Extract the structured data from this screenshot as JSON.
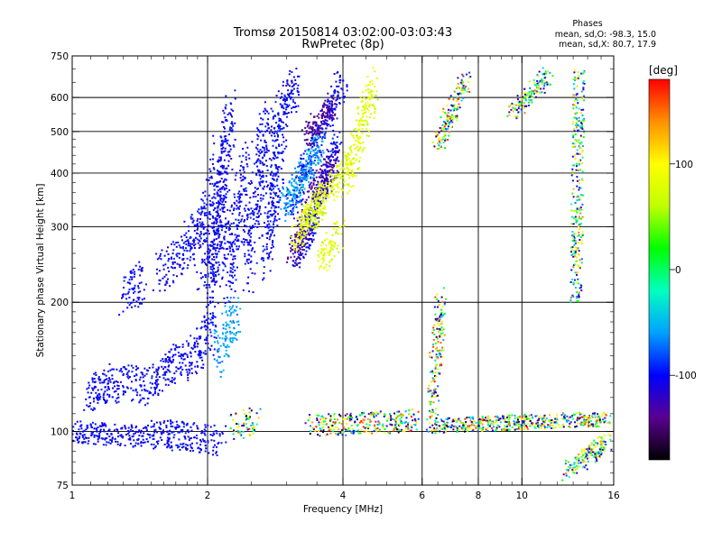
{
  "chart_data": {
    "type": "scatter",
    "title": "Tromsø 20150814 03:02:00-03:03:43",
    "subtitle": "RwPretec (8p)",
    "xlabel": "Frequency [MHz]",
    "ylabel": "Stationary phase Virtual Height [km]",
    "xscale": "log",
    "yscale": "log",
    "xlim": [
      1,
      16
    ],
    "ylim": [
      75,
      750
    ],
    "xticks": [
      {
        "value": 1,
        "label": "1"
      },
      {
        "value": 2,
        "label": "2"
      },
      {
        "value": 4,
        "label": "4"
      },
      {
        "value": 6,
        "label": "6"
      },
      {
        "value": 8,
        "label": "8"
      },
      {
        "value": 10,
        "label": "10"
      },
      {
        "value": 16,
        "label": "16"
      }
    ],
    "yticks": [
      {
        "value": 75,
        "label": "75"
      },
      {
        "value": 100,
        "label": "100"
      },
      {
        "value": 200,
        "label": "200"
      },
      {
        "value": 300,
        "label": "300"
      },
      {
        "value": 400,
        "label": "400"
      },
      {
        "value": 500,
        "label": "500"
      },
      {
        "value": 600,
        "label": "600"
      },
      {
        "value": 750,
        "label": "750"
      }
    ],
    "grid": true,
    "phase_box": {
      "heading": "Phases",
      "line_o": "mean, sd,O: -98.3, 15.0",
      "line_x": "mean, sd,X: 80.7, 17.9"
    },
    "colorbar": {
      "label": "[deg]",
      "range": [
        -180,
        180
      ],
      "ticks": [
        {
          "value": 100,
          "label": "100"
        },
        {
          "value": 0,
          "label": "0"
        },
        {
          "value": -100,
          "label": "-100"
        }
      ],
      "colors": [
        "#000000",
        "#5a0090",
        "#0000ff",
        "#00a0ff",
        "#00ffc0",
        "#00ff00",
        "#c0ff00",
        "#ffff00",
        "#ff9000",
        "#ff0000"
      ]
    },
    "series": [
      {
        "traces": [
          [
            1.0,
            100,
            1.5,
            97,
            0.12
          ],
          [
            1.5,
            99,
            2.15,
            95,
            0.16
          ],
          [
            1.08,
            120,
            1.22,
            132,
            0.18
          ],
          [
            1.2,
            128,
            1.45,
            130,
            0.2
          ],
          [
            1.45,
            125,
            1.75,
            150,
            0.2
          ],
          [
            1.75,
            140,
            2.05,
            170,
            0.22
          ],
          [
            1.3,
            205,
            1.45,
            225,
            0.2
          ],
          [
            1.55,
            235,
            1.75,
            255,
            0.22
          ],
          [
            1.78,
            260,
            1.95,
            320,
            0.25
          ],
          [
            1.95,
            250,
            2.12,
            420,
            0.35
          ],
          [
            2.02,
            200,
            2.18,
            330,
            0.35
          ],
          [
            2.1,
            280,
            2.25,
            560,
            0.3
          ],
          [
            2.22,
            230,
            2.45,
            420,
            0.35
          ],
          [
            2.45,
            240,
            2.7,
            520,
            0.35
          ],
          [
            2.7,
            250,
            2.95,
            560,
            0.3
          ],
          [
            2.8,
            520,
            3.15,
            640,
            0.2
          ],
          [
            3.05,
            330,
            4.0,
            660,
            0.15
          ],
          [
            3.2,
            250,
            3.9,
            480,
            0.1
          ]
        ],
        "color_range": [
          -115,
          -88
        ]
      },
      {
        "traces": [
          [
            2.1,
            150,
            2.35,
            190,
            0.25
          ],
          [
            3.3,
            390,
            3.55,
            470,
            0.15
          ],
          [
            2.95,
            330,
            3.3,
            410,
            0.15
          ]
        ],
        "color_range": [
          -75,
          -40
        ]
      },
      {
        "traces": [
          [
            3.05,
            250,
            3.35,
            310,
            0.15
          ],
          [
            3.3,
            480,
            3.8,
            580,
            0.12
          ],
          [
            3.35,
            340,
            3.85,
            420,
            0.18
          ]
        ],
        "color_range": [
          -150,
          -125
        ]
      },
      {
        "traces": [
          [
            3.1,
            280,
            3.6,
            340,
            0.15
          ],
          [
            3.55,
            250,
            3.95,
            290,
            0.15
          ],
          [
            3.3,
            310,
            4.1,
            420,
            0.15
          ],
          [
            4.05,
            380,
            4.7,
            650,
            0.2
          ]
        ],
        "color_range": [
          55,
          105
        ]
      },
      {
        "traces": [
          [
            2.3,
            102,
            2.55,
            106,
            0.15
          ],
          [
            3.4,
            103,
            5.8,
            106,
            0.12
          ],
          [
            6.2,
            103,
            15.5,
            107,
            0.08
          ],
          [
            6.3,
            110,
            6.6,
            200,
            0.2
          ],
          [
            6.5,
            470,
            7.5,
            660,
            0.1
          ]
        ],
        "color_range": [
          -180,
          180
        ]
      },
      {
        "traces": [
          [
            13.2,
            200,
            13.4,
            700,
            0.05
          ],
          [
            12.5,
            80,
            15.5,
            95,
            0.1
          ],
          [
            9.5,
            550,
            11.5,
            680,
            0.1
          ]
        ],
        "color_range": [
          -150,
          150
        ]
      }
    ]
  }
}
